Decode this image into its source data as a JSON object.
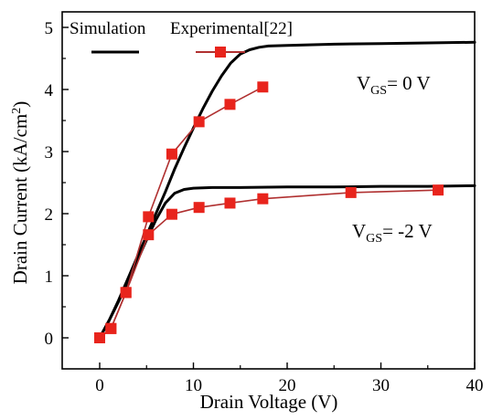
{
  "chart_data": {
    "type": "line",
    "title": "",
    "xlabel": "Drain Voltage (V)",
    "ylabel": "Drain Current (kA/cm",
    "ylabel_sup": "2",
    "ylabel_end": ")",
    "xlim": [
      -4,
      40
    ],
    "ylim": [
      -0.5,
      5.25
    ],
    "xticks": [
      0,
      10,
      20,
      30,
      40
    ],
    "yticks": [
      0,
      1,
      2,
      3,
      4,
      5
    ],
    "grid": false,
    "legend_position": "top-left",
    "legend": {
      "simulation_label": "Simulation",
      "experimental_label": "Experimental[22]"
    },
    "annotations": [
      {
        "main": "V",
        "sub": "GS",
        "rest": "= 0 V",
        "x": 29,
        "y": 4.25
      },
      {
        "main": "V",
        "sub": "GS",
        "rest": "= -2 V",
        "x": 28.5,
        "y": 1.7
      }
    ],
    "series": [
      {
        "group": "simulation",
        "vgs": "0",
        "style": "line",
        "color": "#000000",
        "points": [
          [
            0,
            0
          ],
          [
            1,
            0.28
          ],
          [
            2,
            0.6
          ],
          [
            3,
            0.95
          ],
          [
            4,
            1.3
          ],
          [
            5,
            1.65
          ],
          [
            6,
            2.0
          ],
          [
            7,
            2.35
          ],
          [
            8,
            2.72
          ],
          [
            9,
            3.06
          ],
          [
            10,
            3.38
          ],
          [
            11,
            3.69
          ],
          [
            12,
            3.97
          ],
          [
            13,
            4.22
          ],
          [
            14,
            4.43
          ],
          [
            15,
            4.57
          ],
          [
            16,
            4.64
          ],
          [
            17,
            4.68
          ],
          [
            18,
            4.7
          ],
          [
            20,
            4.71
          ],
          [
            25,
            4.73
          ],
          [
            30,
            4.74
          ],
          [
            35,
            4.75
          ],
          [
            40,
            4.76
          ]
        ]
      },
      {
        "group": "simulation",
        "vgs": "-2",
        "style": "line",
        "color": "#000000",
        "points": [
          [
            0,
            0
          ],
          [
            1,
            0.28
          ],
          [
            2,
            0.58
          ],
          [
            3,
            0.9
          ],
          [
            4,
            1.24
          ],
          [
            5,
            1.58
          ],
          [
            6,
            1.9
          ],
          [
            7,
            2.17
          ],
          [
            8,
            2.33
          ],
          [
            9,
            2.39
          ],
          [
            10,
            2.41
          ],
          [
            12,
            2.42
          ],
          [
            15,
            2.42
          ],
          [
            20,
            2.43
          ],
          [
            25,
            2.43
          ],
          [
            30,
            2.44
          ],
          [
            35,
            2.44
          ],
          [
            40,
            2.45
          ]
        ]
      },
      {
        "group": "experimental",
        "vgs": "0",
        "style": "line+markers",
        "color": "#b03030",
        "marker_color": "#e8241c",
        "points": [
          [
            0,
            0
          ],
          [
            1.2,
            0.15
          ],
          [
            2.8,
            0.73
          ],
          [
            5.2,
            1.95
          ],
          [
            7.7,
            2.96
          ],
          [
            10.6,
            3.48
          ],
          [
            13.9,
            3.76
          ],
          [
            17.4,
            4.04
          ]
        ]
      },
      {
        "group": "experimental",
        "vgs": "-2",
        "style": "line+markers",
        "color": "#b03030",
        "marker_color": "#e8241c",
        "points": [
          [
            0,
            0
          ],
          [
            1.2,
            0.15
          ],
          [
            2.8,
            0.73
          ],
          [
            5.2,
            1.66
          ],
          [
            7.7,
            1.99
          ],
          [
            10.6,
            2.1
          ],
          [
            13.9,
            2.17
          ],
          [
            17.4,
            2.24
          ],
          [
            26.8,
            2.34
          ],
          [
            36.1,
            2.38
          ]
        ]
      }
    ]
  }
}
